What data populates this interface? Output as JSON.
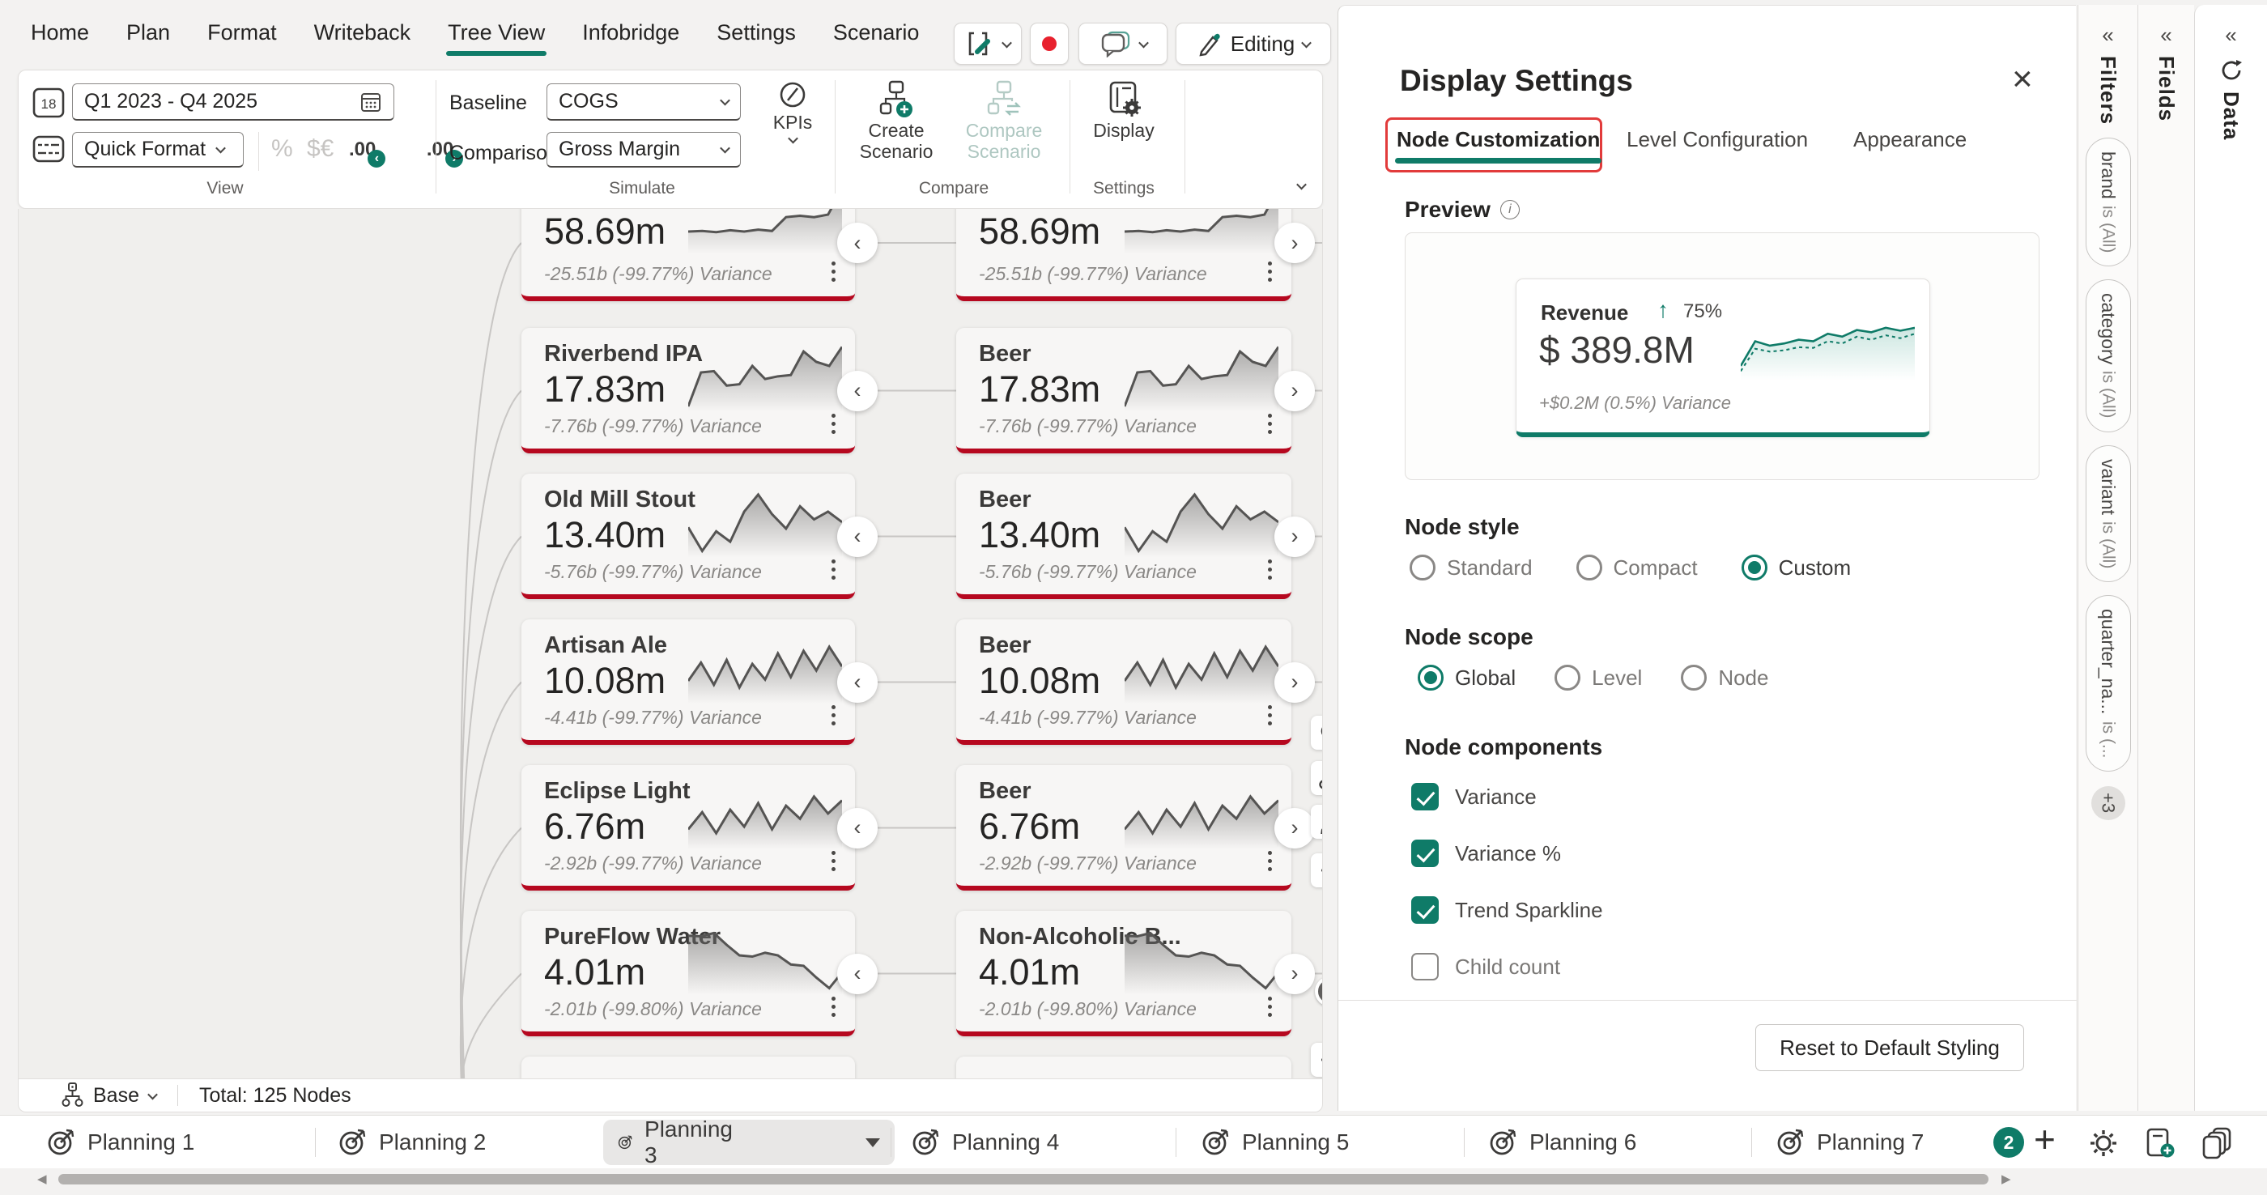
{
  "app": {
    "menu": {
      "items": [
        "Home",
        "Plan",
        "Format",
        "Writeback",
        "Tree View",
        "Infobridge",
        "Settings",
        "Scenario"
      ],
      "active_index": 4
    },
    "quick_toolbar": {
      "editing_label": "Editing"
    },
    "ribbon": {
      "date_range": "Q1 2023 - Q4 2025",
      "quick_format": "Quick Format",
      "percent_icon": "%",
      "currency_icon": "$€",
      "decimal_left": ".00",
      "decimal_right": ".00",
      "group_view": "View",
      "baseline_label": "Baseline",
      "baseline_value": "COGS",
      "comparison_label": "Comparison",
      "comparison_value": "Gross Margin",
      "kpis_label": "KPIs",
      "group_simulate": "Simulate",
      "create_scenario": "Create Scenario",
      "compare_scenario": "Compare Scenario",
      "group_compare": "Compare",
      "display_label": "Display",
      "group_settings": "Settings"
    },
    "canvas": {
      "left_nodes": [
        {
          "title": "",
          "value": "58.69m",
          "variance": "-25.51b (-99.77%) Variance",
          "partial": "top",
          "spark": [
            30,
            31,
            29,
            32,
            30,
            33,
            31,
            52,
            54,
            52,
            56,
            95
          ]
        },
        {
          "title": "Riverbend IPA",
          "value": "17.83m",
          "variance": "-7.76b (-99.77%) Variance",
          "spark": [
            4,
            56,
            58,
            36,
            38,
            66,
            46,
            50,
            52,
            88,
            72,
            66,
            95
          ]
        },
        {
          "title": "Old Mill Stout",
          "value": "13.40m",
          "variance": "-5.76b (-99.77%) Variance",
          "spark": [
            42,
            6,
            36,
            20,
            66,
            92,
            62,
            40,
            74,
            54,
            66,
            50
          ]
        },
        {
          "title": "Artisan Ale",
          "value": "10.08m",
          "variance": "-4.41b (-99.77%) Variance",
          "spark": [
            30,
            58,
            24,
            62,
            20,
            56,
            32,
            72,
            36,
            76,
            46,
            82,
            52
          ]
        },
        {
          "title": "Eclipse Light",
          "value": "6.76m",
          "variance": "-2.92b (-99.77%) Variance",
          "spark": [
            26,
            52,
            20,
            56,
            30,
            66,
            26,
            62,
            42,
            76,
            50,
            70
          ]
        },
        {
          "title": "PureFlow Water",
          "value": "4.01m",
          "variance": "-2.01b (-99.80%) Variance",
          "spark": [
            86,
            85,
            90,
            72,
            56,
            54,
            60,
            56,
            42,
            40,
            22,
            6,
            30
          ]
        },
        {
          "title": "",
          "value": "",
          "variance": "",
          "partial": "bottom",
          "spark": []
        }
      ],
      "right_nodes": [
        {
          "title": "",
          "value": "58.69m",
          "variance": "-25.51b (-99.77%) Variance",
          "partial": "top",
          "spark": [
            30,
            31,
            29,
            32,
            30,
            33,
            31,
            52,
            54,
            52,
            56,
            95
          ]
        },
        {
          "title": "Beer",
          "value": "17.83m",
          "variance": "-7.76b (-99.77%) Variance",
          "spark": [
            4,
            56,
            58,
            36,
            38,
            66,
            46,
            50,
            52,
            88,
            72,
            66,
            95
          ]
        },
        {
          "title": "Beer",
          "value": "13.40m",
          "variance": "-5.76b (-99.77%) Variance",
          "spark": [
            42,
            6,
            36,
            20,
            66,
            92,
            62,
            40,
            74,
            54,
            66,
            50
          ]
        },
        {
          "title": "Beer",
          "value": "10.08m",
          "variance": "-4.41b (-99.77%) Variance",
          "spark": [
            30,
            58,
            24,
            62,
            20,
            56,
            32,
            72,
            36,
            76,
            46,
            82,
            52
          ]
        },
        {
          "title": "Beer",
          "value": "6.76m",
          "variance": "-2.92b (-99.77%) Variance",
          "spark": [
            26,
            52,
            20,
            56,
            30,
            66,
            26,
            62,
            42,
            76,
            50,
            70
          ]
        },
        {
          "title": "Non-Alcoholic B...",
          "value": "4.01m",
          "variance": "-2.01b (-99.80%) Variance",
          "spark": [
            86,
            85,
            90,
            72,
            56,
            54,
            60,
            56,
            42,
            40,
            22,
            6,
            30
          ]
        },
        {
          "title": "",
          "value": "",
          "variance": "",
          "partial": "bottom",
          "spark": []
        }
      ]
    },
    "status_bar": {
      "scenario": "Base",
      "total": "Total: 125 Nodes"
    },
    "display_panel": {
      "title": "Display Settings",
      "close_icon": "×",
      "tabs": [
        {
          "label": "Node Customization",
          "active": true
        },
        {
          "label": "Level Configuration",
          "active": false
        },
        {
          "label": "Appearance",
          "active": false
        }
      ],
      "preview": {
        "label": "Preview",
        "card": {
          "title": "Revenue",
          "trend_arrow": "↑",
          "trend_pct": "75%",
          "value": "$ 389.8M",
          "variance": "+$0.2M (0.5%) Variance",
          "spark_solid": [
            15,
            48,
            42,
            45,
            50,
            48,
            58,
            54,
            63,
            60,
            66,
            62,
            66
          ],
          "spark_dotted": [
            8,
            38,
            34,
            36,
            40,
            39,
            48,
            45,
            54,
            50,
            56,
            52,
            58
          ]
        }
      },
      "node_style": {
        "label": "Node style",
        "options": [
          "Standard",
          "Compact",
          "Custom"
        ],
        "selected": "Custom"
      },
      "node_scope": {
        "label": "Node scope",
        "options": [
          "Global",
          "Level",
          "Node"
        ],
        "selected": "Global"
      },
      "node_components": {
        "label": "Node components",
        "options": [
          {
            "label": "Variance",
            "checked": true
          },
          {
            "label": "Variance %",
            "checked": true
          },
          {
            "label": "Trend Sparkline",
            "checked": true
          },
          {
            "label": "Child count",
            "checked": false
          }
        ]
      },
      "reset_button": "Reset to Default Styling"
    },
    "sidebar": {
      "filters": {
        "label": "Filters",
        "collapse_icon": "«",
        "pills": [
          {
            "field": "brand",
            "op": "is (All)"
          },
          {
            "field": "category",
            "op": "is (All)"
          },
          {
            "field": "variant",
            "op": "is (All)"
          },
          {
            "field": "quarter_na...",
            "op": "is (..."
          }
        ],
        "more_badge": "+3"
      },
      "fields": {
        "label": "Fields",
        "collapse_icon": "«"
      },
      "data": {
        "label": "Data",
        "collapse_icon": "«"
      }
    },
    "tab_bar": {
      "tabs": [
        {
          "label": "Planning 1"
        },
        {
          "label": "Planning 2"
        },
        {
          "label": "Planning 3",
          "selected": true
        },
        {
          "label": "Planning 4"
        },
        {
          "label": "Planning 5"
        },
        {
          "label": "Planning 6"
        },
        {
          "label": "Planning 7"
        }
      ],
      "badge": "2"
    },
    "colors": {
      "accent": "#0f7b68",
      "node_border": "#b6081f",
      "highlight_red": "#e23b3b"
    }
  }
}
